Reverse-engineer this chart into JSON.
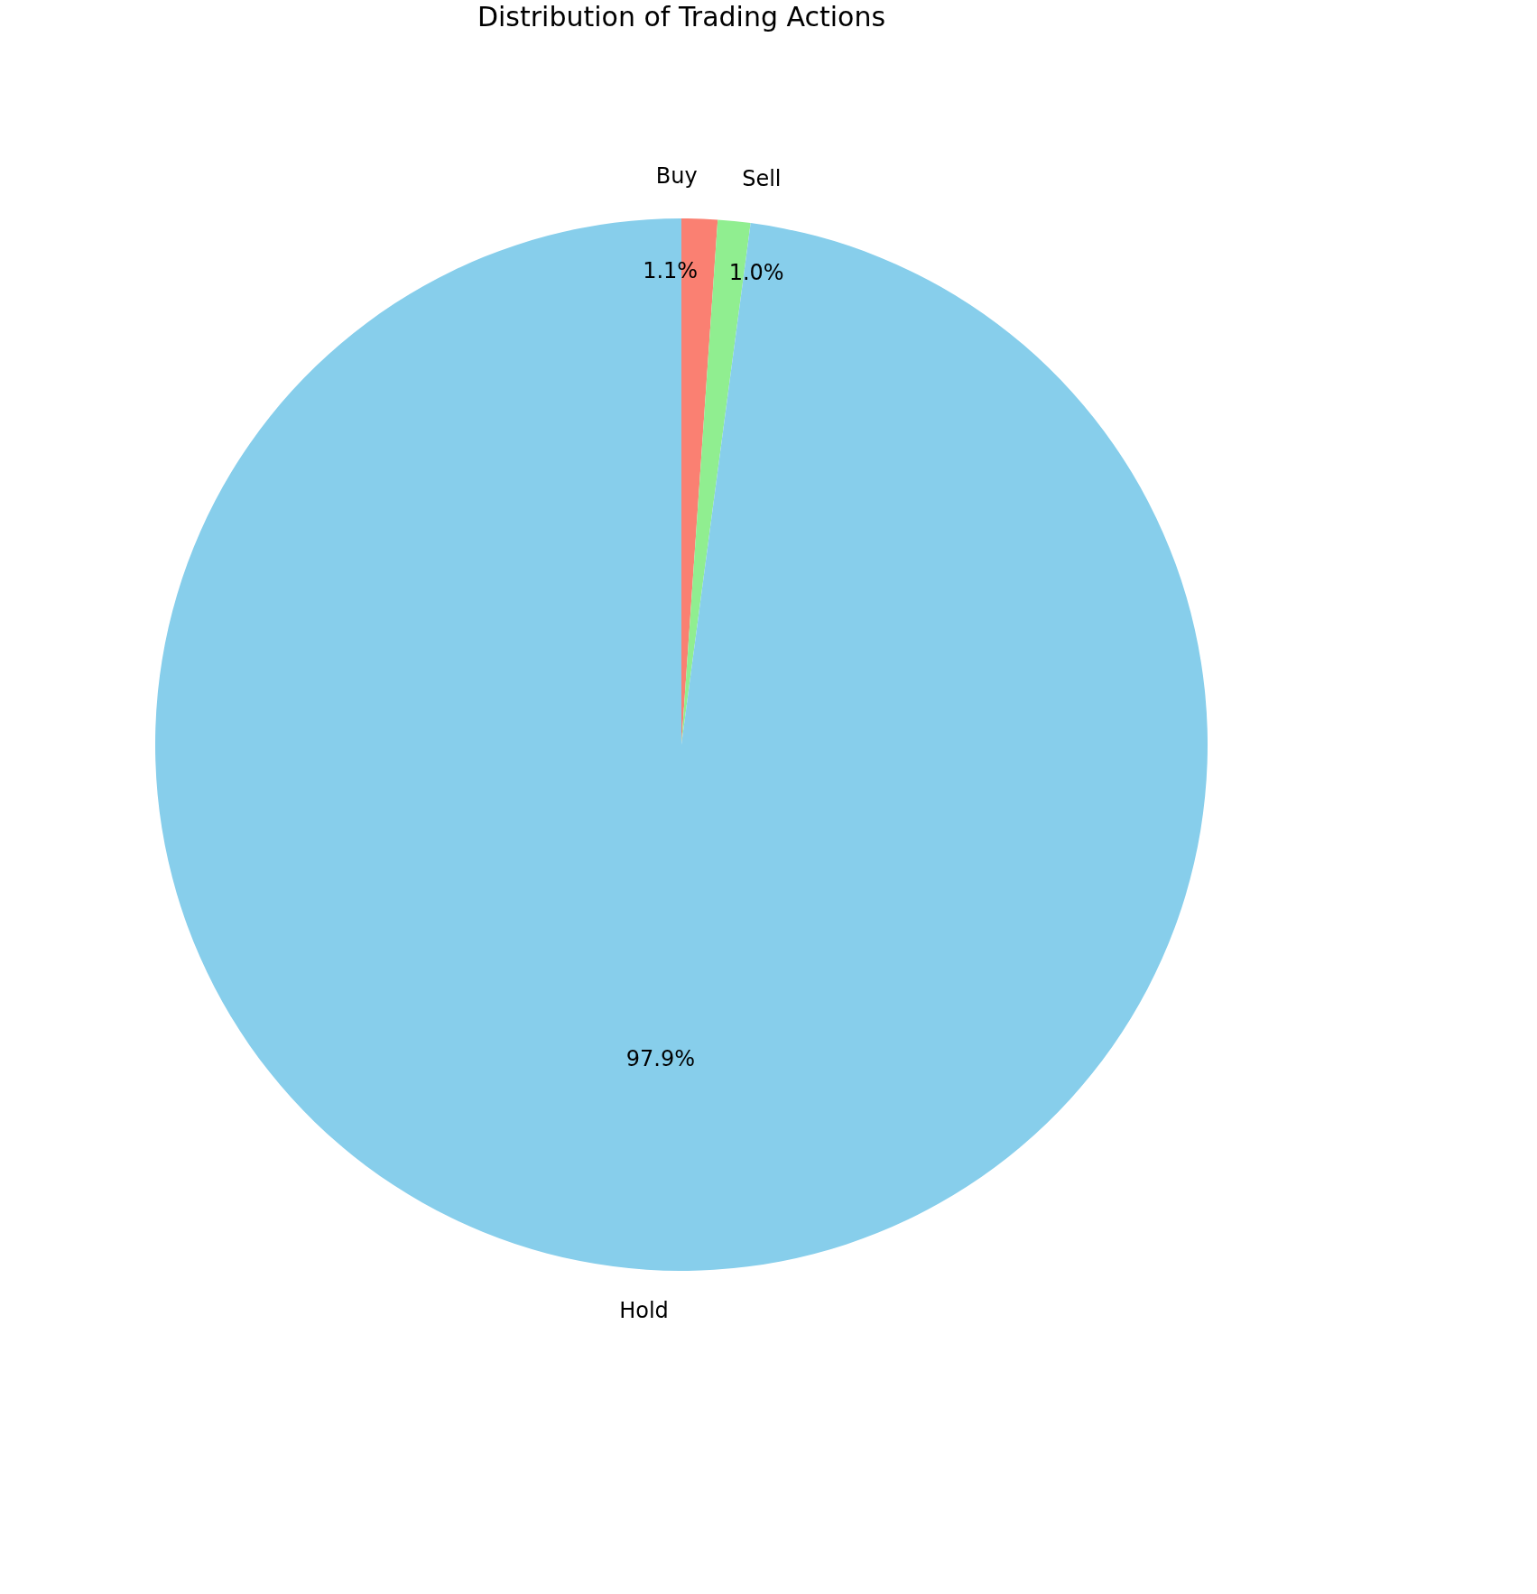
{
  "chart_data": {
    "type": "pie",
    "title": "Distribution of Trading Actions",
    "categories": [
      "Buy",
      "Sell",
      "Hold"
    ],
    "values": [
      1.1,
      1.0,
      97.9
    ],
    "colors": [
      "#fa8072",
      "#90ee90",
      "#87ceeb"
    ],
    "value_labels": [
      "1.1%",
      "1.0%",
      "97.9%"
    ]
  }
}
